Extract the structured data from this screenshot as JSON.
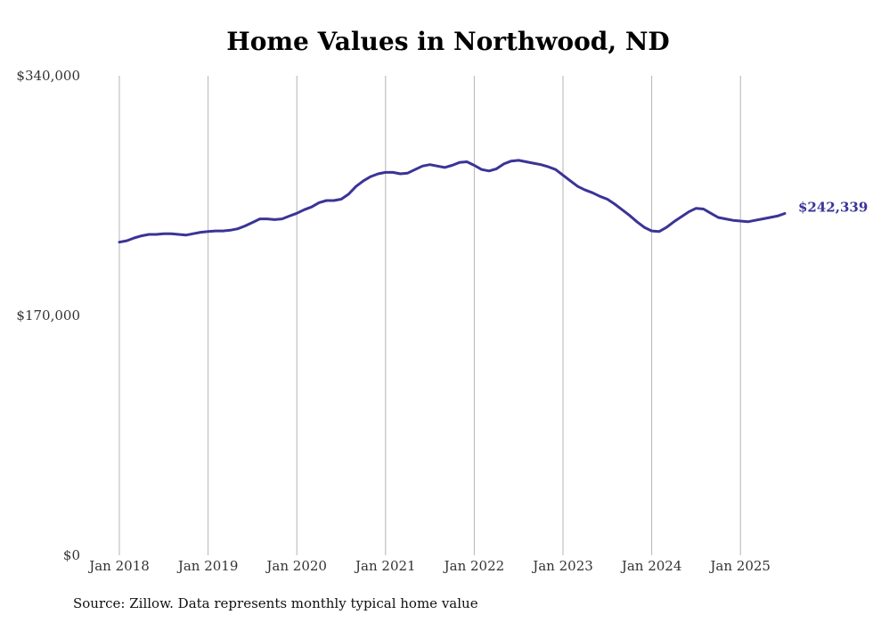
{
  "chart_data": {
    "type": "line",
    "title": "Home Values in Northwood, ND",
    "xlabel": "",
    "ylabel": "",
    "ylim": [
      0,
      340000
    ],
    "y_ticks": [
      {
        "value": 0,
        "label": "$0"
      },
      {
        "value": 170000,
        "label": "$170,000"
      },
      {
        "value": 340000,
        "label": "$340,000"
      }
    ],
    "x_ticks": [
      {
        "value": 2018,
        "label": "Jan 2018"
      },
      {
        "value": 2019,
        "label": "Jan 2019"
      },
      {
        "value": 2020,
        "label": "Jan 2020"
      },
      {
        "value": 2021,
        "label": "Jan 2021"
      },
      {
        "value": 2022,
        "label": "Jan 2022"
      },
      {
        "value": 2023,
        "label": "Jan 2023"
      },
      {
        "value": 2024,
        "label": "Jan 2024"
      },
      {
        "value": 2025,
        "label": "Jan 2025"
      }
    ],
    "grid": "vertical",
    "series": [
      {
        "color": "#3a3497",
        "end_label": "$242,339",
        "points": [
          [
            "2018-01",
            222000
          ],
          [
            "2018-02",
            223000
          ],
          [
            "2018-03",
            225000
          ],
          [
            "2018-04",
            226500
          ],
          [
            "2018-05",
            227500
          ],
          [
            "2018-06",
            227500
          ],
          [
            "2018-07",
            228000
          ],
          [
            "2018-08",
            228000
          ],
          [
            "2018-09",
            227500
          ],
          [
            "2018-10",
            227000
          ],
          [
            "2018-11",
            228000
          ],
          [
            "2018-12",
            229000
          ],
          [
            "2019-01",
            229500
          ],
          [
            "2019-02",
            230000
          ],
          [
            "2019-03",
            230000
          ],
          [
            "2019-04",
            230500
          ],
          [
            "2019-05",
            231500
          ],
          [
            "2019-06",
            233500
          ],
          [
            "2019-07",
            236000
          ],
          [
            "2019-08",
            238500
          ],
          [
            "2019-09",
            238500
          ],
          [
            "2019-10",
            238000
          ],
          [
            "2019-11",
            238500
          ],
          [
            "2019-12",
            240500
          ],
          [
            "2020-01",
            242500
          ],
          [
            "2020-02",
            245000
          ],
          [
            "2020-03",
            247000
          ],
          [
            "2020-04",
            250000
          ],
          [
            "2020-05",
            251500
          ],
          [
            "2020-06",
            251500
          ],
          [
            "2020-07",
            252500
          ],
          [
            "2020-08",
            256000
          ],
          [
            "2020-09",
            261500
          ],
          [
            "2020-10",
            265500
          ],
          [
            "2020-11",
            268500
          ],
          [
            "2020-12",
            270500
          ],
          [
            "2021-01",
            271500
          ],
          [
            "2021-02",
            271500
          ],
          [
            "2021-03",
            270500
          ],
          [
            "2021-04",
            271000
          ],
          [
            "2021-05",
            273500
          ],
          [
            "2021-06",
            276000
          ],
          [
            "2021-07",
            277000
          ],
          [
            "2021-08",
            276000
          ],
          [
            "2021-09",
            275000
          ],
          [
            "2021-10",
            276500
          ],
          [
            "2021-11",
            278500
          ],
          [
            "2021-12",
            279000
          ],
          [
            "2022-01",
            276500
          ],
          [
            "2022-02",
            273500
          ],
          [
            "2022-03",
            272500
          ],
          [
            "2022-04",
            274000
          ],
          [
            "2022-05",
            277500
          ],
          [
            "2022-06",
            279500
          ],
          [
            "2022-07",
            280000
          ],
          [
            "2022-08",
            279000
          ],
          [
            "2022-09",
            278000
          ],
          [
            "2022-10",
            277000
          ],
          [
            "2022-11",
            275500
          ],
          [
            "2022-12",
            273500
          ],
          [
            "2023-01",
            269500
          ],
          [
            "2023-02",
            265500
          ],
          [
            "2023-03",
            261500
          ],
          [
            "2023-04",
            259000
          ],
          [
            "2023-05",
            257000
          ],
          [
            "2023-06",
            254500
          ],
          [
            "2023-07",
            252500
          ],
          [
            "2023-08",
            249000
          ],
          [
            "2023-09",
            245000
          ],
          [
            "2023-10",
            241000
          ],
          [
            "2023-11",
            236500
          ],
          [
            "2023-12",
            232500
          ],
          [
            "2024-01",
            230000
          ],
          [
            "2024-02",
            229500
          ],
          [
            "2024-03",
            232500
          ],
          [
            "2024-04",
            236500
          ],
          [
            "2024-05",
            240000
          ],
          [
            "2024-06",
            243500
          ],
          [
            "2024-07",
            246000
          ],
          [
            "2024-08",
            245500
          ],
          [
            "2024-09",
            242500
          ],
          [
            "2024-10",
            239500
          ],
          [
            "2024-11",
            238500
          ],
          [
            "2024-12",
            237500
          ],
          [
            "2025-01",
            237000
          ],
          [
            "2025-02",
            236500
          ],
          [
            "2025-03",
            237500
          ],
          [
            "2025-04",
            238500
          ],
          [
            "2025-05",
            239500
          ],
          [
            "2025-06",
            240500
          ],
          [
            "2025-07",
            242339
          ]
        ]
      }
    ]
  },
  "footer": {
    "source": "Source: Zillow. Data represents monthly typical home value"
  },
  "colors": {
    "line": "#3a3497",
    "grid": "#b4b4b4",
    "text": "#333333"
  }
}
